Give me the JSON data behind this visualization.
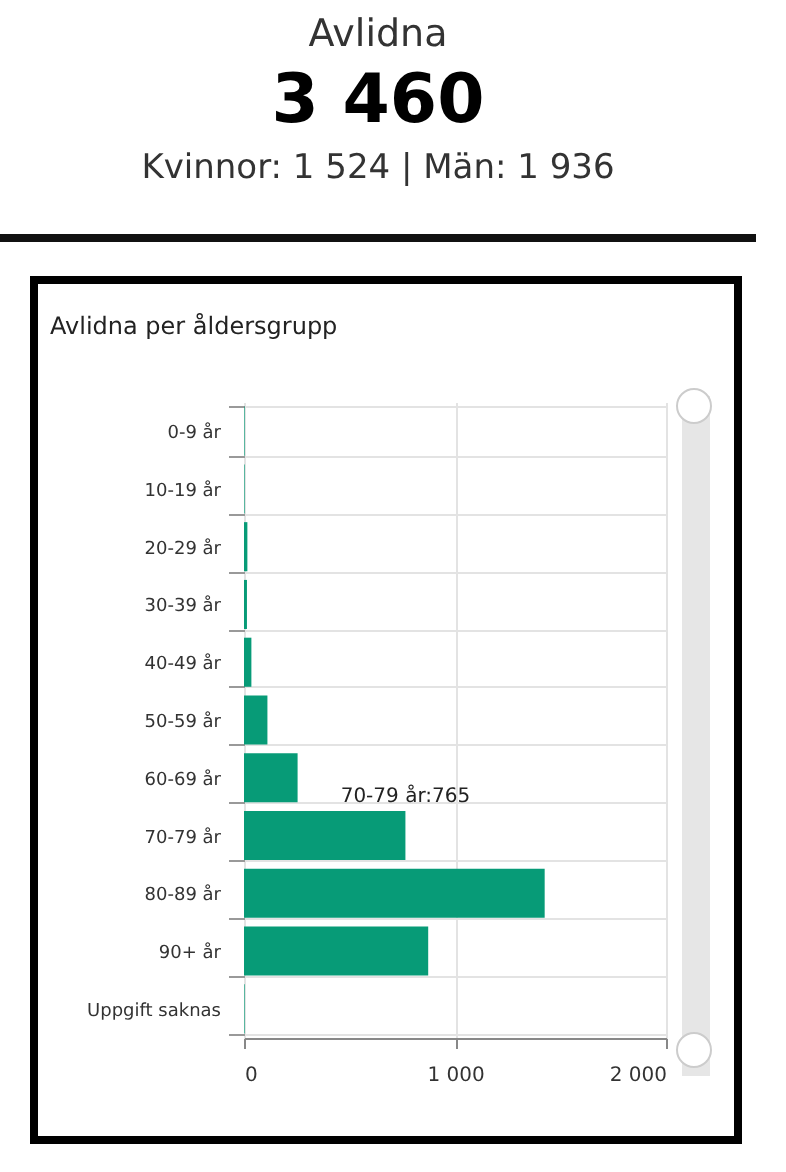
{
  "chart_data": [
    {
      "type": "other",
      "title": "Avlidna",
      "annotations": [
        "3 460",
        "Kvinnor: 1 524 | Män: 1 936"
      ]
    },
    {
      "type": "bar",
      "title": "Avlidna per åldersgrupp",
      "orientation": "horizontal",
      "categories": [
        "0-9 år",
        "10-19 år",
        "20-29 år",
        "30-39 år",
        "40-49 år",
        "50-59 år",
        "60-69 år",
        "70-79 år",
        "80-89 år",
        "90+ år",
        "Uppgift saknas"
      ],
      "values": [
        3,
        3,
        16,
        14,
        35,
        111,
        254,
        765,
        1425,
        873,
        3
      ],
      "color": "#079b77",
      "xlim": [
        0,
        2000
      ],
      "xticks": [
        0,
        {
          "value": 1000,
          "label": "1 000"
        },
        {
          "value": 2000,
          "label": "2 000"
        }
      ],
      "grid": true,
      "annotations": [
        {
          "text": "70-79 år:765",
          "x": 765,
          "y": "70-79 år"
        }
      ]
    }
  ]
}
